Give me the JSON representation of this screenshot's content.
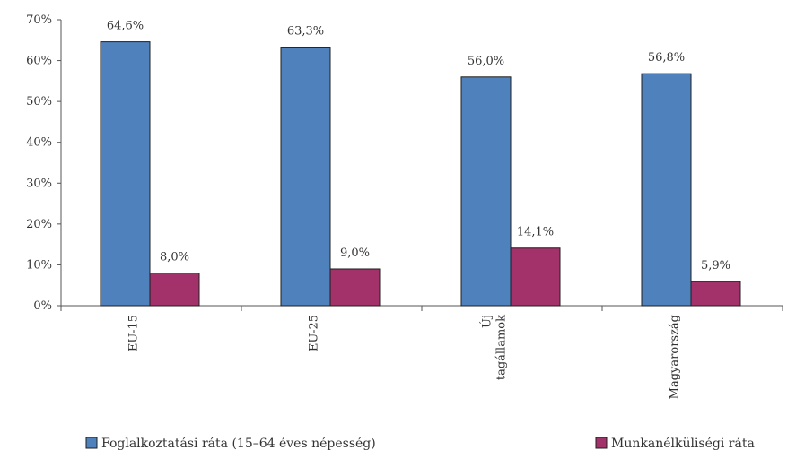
{
  "chart_data": {
    "type": "bar",
    "categories": [
      "EU-15",
      "EU-25",
      "Új tagállamok",
      "Magyarország"
    ],
    "category_lines": [
      [
        "EU-15"
      ],
      [
        "EU-25"
      ],
      [
        "Új",
        "tagállamok"
      ],
      [
        "Magyarország"
      ]
    ],
    "series": [
      {
        "name": "Foglalkoztatási ráta (15–64 éves népesség)",
        "values": [
          64.6,
          63.3,
          56.0,
          56.8
        ],
        "labels": [
          "64,6%",
          "63,3%",
          "56,0%",
          "56,8%"
        ],
        "color": "#4f81bd"
      },
      {
        "name": "Munkanélküliségi ráta",
        "values": [
          8.0,
          9.0,
          14.1,
          5.9
        ],
        "labels": [
          "8,0%",
          "9,0%",
          "14,1%",
          "5,9%"
        ],
        "color": "#a3316a"
      }
    ],
    "ylim": [
      0,
      70
    ],
    "yticks": [
      0,
      10,
      20,
      30,
      40,
      50,
      60,
      70
    ],
    "ytick_labels": [
      "0%",
      "10%",
      "20%",
      "30%",
      "40%",
      "50%",
      "60%",
      "70%"
    ],
    "grid": false,
    "legend_position": "bottom"
  }
}
